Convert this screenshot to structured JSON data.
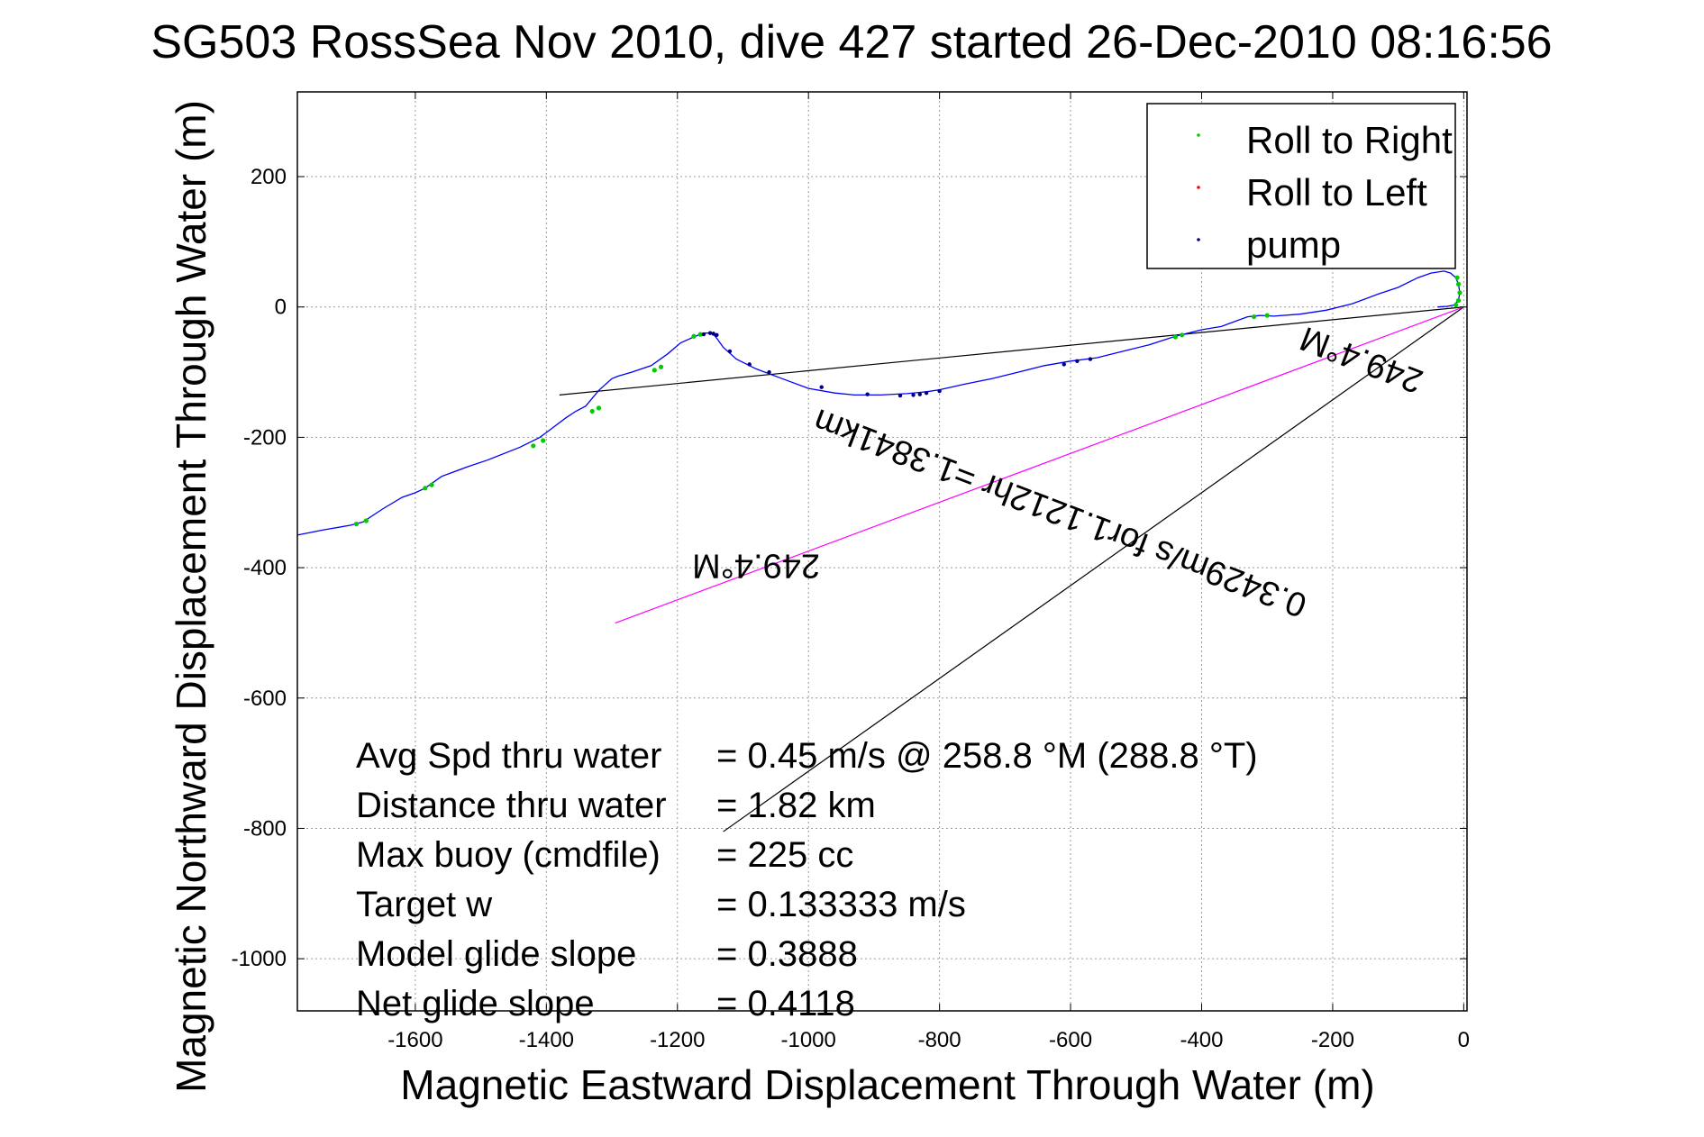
{
  "chart_data": {
    "type": "line",
    "title": "SG503 RossSea Nov 2010, dive 427 started 26-Dec-2010 08:16:56",
    "xlabel": "Magnetic Eastward Displacement Through Water (m)",
    "ylabel": "Magnetic Northward Displacement Through Water (m)",
    "xlim": [
      -1780,
      5
    ],
    "ylim": [
      -1080,
      330
    ],
    "xticks": [
      -1600,
      -1400,
      -1200,
      -1000,
      -800,
      -600,
      -400,
      -200,
      0
    ],
    "yticks": [
      -1000,
      -800,
      -600,
      -400,
      -200,
      0,
      200
    ],
    "grid": true,
    "legend_position": "top-right",
    "legend": [
      {
        "label": "Roll to Right",
        "color": "#00cc00"
      },
      {
        "label": "Roll to Left",
        "color": "#ff0000"
      },
      {
        "label": "pump",
        "color": "#000080"
      }
    ],
    "track": {
      "color": "#0000ff",
      "x": [
        -1780,
        -1740,
        -1700,
        -1680,
        -1650,
        -1620,
        -1600,
        -1585,
        -1560,
        -1520,
        -1490,
        -1440,
        -1410,
        -1390,
        -1370,
        -1355,
        -1340,
        -1320,
        -1300,
        -1290,
        -1270,
        -1240,
        -1215,
        -1195,
        -1175,
        -1160,
        -1150,
        -1145,
        -1140,
        -1130,
        -1110,
        -1080,
        -1040,
        -1000,
        -960,
        -930,
        -890,
        -850,
        -820,
        -800,
        -760,
        -720,
        -680,
        -640,
        -600,
        -560,
        -520,
        -480,
        -440,
        -400,
        -370,
        -330,
        -310,
        -290,
        -250,
        -210,
        -170,
        -130,
        -100,
        -70,
        -50,
        -30,
        -20,
        -12,
        -8,
        -6,
        -8,
        -15,
        -25,
        -40
      ],
      "y": [
        -350,
        -342,
        -335,
        -330,
        -310,
        -292,
        -285,
        -278,
        -260,
        -245,
        -235,
        -215,
        -200,
        -185,
        -170,
        -160,
        -152,
        -128,
        -110,
        -106,
        -100,
        -90,
        -72,
        -55,
        -46,
        -40,
        -40,
        -42,
        -48,
        -62,
        -80,
        -95,
        -110,
        -125,
        -132,
        -135,
        -135,
        -133,
        -130,
        -127,
        -118,
        -110,
        -100,
        -90,
        -83,
        -78,
        -68,
        -58,
        -45,
        -35,
        -30,
        -15,
        -13,
        -14,
        -11,
        -5,
        5,
        20,
        30,
        45,
        52,
        55,
        52,
        45,
        35,
        22,
        10,
        3,
        1,
        0
      ]
    },
    "roll_right_points": {
      "x": [
        -1690,
        -1675,
        -1585,
        -1575,
        -1420,
        -1405,
        -1330,
        -1320,
        -1235,
        -1225,
        -1175,
        -1165,
        -440,
        -430,
        -320,
        -300,
        -10,
        -8,
        -6,
        -8,
        -12
      ],
      "y": [
        -333,
        -328,
        -278,
        -273,
        -213,
        -205,
        -160,
        -155,
        -97,
        -92,
        -45,
        -42,
        -46,
        -43,
        -15,
        -13,
        45,
        35,
        22,
        10,
        3
      ]
    },
    "pump_points": {
      "x": [
        -1160,
        -1150,
        -1145,
        -1140,
        -1120,
        -1090,
        -1060,
        -980,
        -910,
        -860,
        -840,
        -830,
        -820,
        -800,
        -610,
        -590,
        -570
      ],
      "y": [
        -42,
        -40,
        -41,
        -43,
        -68,
        -88,
        -100,
        -123,
        -134,
        -136,
        -135,
        -134,
        -132,
        -129,
        -88,
        -83,
        -80
      ]
    },
    "reference_lines": [
      {
        "name": "black-line-1",
        "color": "#000000",
        "x": [
          -1380,
          0
        ],
        "y": [
          -135,
          0
        ]
      },
      {
        "name": "black-line-2",
        "color": "#000000",
        "x": [
          -1130,
          0
        ],
        "y": [
          -805,
          0
        ]
      },
      {
        "name": "magenta-line",
        "color": "#ff00ff",
        "x": [
          -1295,
          0
        ],
        "y": [
          -485,
          0
        ]
      }
    ],
    "angled_labels": [
      {
        "text": "249.4°M",
        "x": -1080,
        "y": -380,
        "angle": 180
      },
      {
        "text": "0.3429m/s for1.1212hr =1.3841km",
        "x": -610,
        "y": -300,
        "angle": 201
      },
      {
        "text": "249.4°M",
        "x": -150,
        "y": -65,
        "angle": 201
      }
    ],
    "annotations": [
      {
        "label": "Avg Spd thru water",
        "value": "=  0.45 m/s @ 258.8 °M (288.8 °T)"
      },
      {
        "label": "Distance thru water",
        "value": "=  1.82 km"
      },
      {
        "label": "Max buoy (cmdfile)",
        "value": "= 225 cc"
      },
      {
        "label": "Target w",
        "value": "= 0.133333 m/s"
      },
      {
        "label": "Model glide slope",
        "value": "= 0.3888"
      },
      {
        "label": "Net glide slope",
        "value": "= 0.4118"
      }
    ]
  }
}
